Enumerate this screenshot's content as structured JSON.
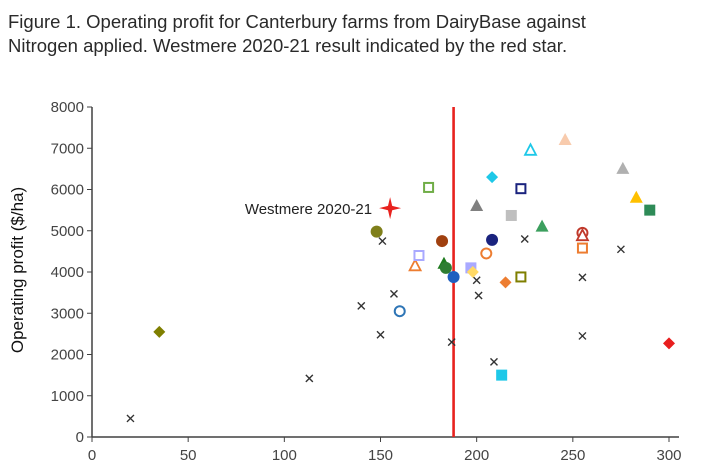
{
  "title_lines": [
    "Figure 1. Operating profit for Canterbury farms from DairyBase against",
    "Nitrogen applied. Westmere 2020-21 result indicated by the red star."
  ],
  "chart_data": {
    "type": "scatter",
    "title": "Figure 1. Operating profit for Canterbury farms from DairyBase against Nitrogen applied. Westmere 2020-21 result indicated by the red star.",
    "xlabel": "",
    "ylabel": "Operating profit ($/ha)",
    "xlim": [
      0,
      300
    ],
    "ylim": [
      0,
      8000
    ],
    "x_ticks": [
      0,
      50,
      100,
      150,
      200,
      250,
      300
    ],
    "y_ticks": [
      0,
      1000,
      2000,
      3000,
      4000,
      5000,
      6000,
      7000,
      8000
    ],
    "grid": false,
    "reference_line": {
      "x": 188,
      "color": "#e8221e"
    },
    "annotation": {
      "text": "Westmere 2020-21",
      "x": 155,
      "y": 5550
    },
    "points": [
      {
        "x": 20,
        "y": 450,
        "marker": "cross",
        "color": "#333333"
      },
      {
        "x": 35,
        "y": 2550,
        "marker": "diamond",
        "color": "#7f7f00"
      },
      {
        "x": 113,
        "y": 1420,
        "marker": "cross",
        "color": "#333333"
      },
      {
        "x": 140,
        "y": 3180,
        "marker": "cross",
        "color": "#333333"
      },
      {
        "x": 148,
        "y": 4980,
        "marker": "circle",
        "color": "#7f7f1a"
      },
      {
        "x": 150,
        "y": 2480,
        "marker": "cross",
        "color": "#333333"
      },
      {
        "x": 151,
        "y": 4750,
        "marker": "cross",
        "color": "#333333"
      },
      {
        "x": 155,
        "y": 5550,
        "marker": "star",
        "color": "#e8221e"
      },
      {
        "x": 157,
        "y": 3470,
        "marker": "cross",
        "color": "#333333"
      },
      {
        "x": 160,
        "y": 3050,
        "marker": "circle-open",
        "color": "#2e75b6"
      },
      {
        "x": 168,
        "y": 4150,
        "marker": "triangle-open",
        "color": "#ed7d31"
      },
      {
        "x": 170,
        "y": 4400,
        "marker": "square-open",
        "color": "#a9a9ff"
      },
      {
        "x": 175,
        "y": 6050,
        "marker": "square-open",
        "color": "#70ad47"
      },
      {
        "x": 182,
        "y": 4750,
        "marker": "circle",
        "color": "#a0400f"
      },
      {
        "x": 183,
        "y": 4200,
        "marker": "triangle",
        "color": "#1e7b1e"
      },
      {
        "x": 184,
        "y": 4100,
        "marker": "circle",
        "color": "#2e7d32"
      },
      {
        "x": 187,
        "y": 2300,
        "marker": "cross",
        "color": "#333333"
      },
      {
        "x": 188,
        "y": 3880,
        "marker": "circle",
        "color": "#1f5fbf"
      },
      {
        "x": 197,
        "y": 4100,
        "marker": "square",
        "color": "#a9a9ff"
      },
      {
        "x": 200,
        "y": 5600,
        "marker": "triangle",
        "color": "#808080"
      },
      {
        "x": 200,
        "y": 3800,
        "marker": "cross",
        "color": "#333333"
      },
      {
        "x": 198,
        "y": 4000,
        "marker": "diamond",
        "color": "#ffd966"
      },
      {
        "x": 201,
        "y": 3430,
        "marker": "cross",
        "color": "#333333"
      },
      {
        "x": 205,
        "y": 4450,
        "marker": "circle-open",
        "color": "#ed7d31"
      },
      {
        "x": 208,
        "y": 6300,
        "marker": "diamond",
        "color": "#1ec8e8"
      },
      {
        "x": 208,
        "y": 4780,
        "marker": "circle",
        "color": "#1a237e"
      },
      {
        "x": 209,
        "y": 1820,
        "marker": "cross",
        "color": "#333333"
      },
      {
        "x": 213,
        "y": 1500,
        "marker": "square",
        "color": "#1ec8e8"
      },
      {
        "x": 215,
        "y": 3750,
        "marker": "diamond",
        "color": "#ed7d31"
      },
      {
        "x": 218,
        "y": 5370,
        "marker": "square",
        "color": "#bfbfbf"
      },
      {
        "x": 223,
        "y": 6020,
        "marker": "square-open",
        "color": "#1a237e"
      },
      {
        "x": 223,
        "y": 3880,
        "marker": "square-open",
        "color": "#7f7f00"
      },
      {
        "x": 225,
        "y": 4800,
        "marker": "cross",
        "color": "#333333"
      },
      {
        "x": 228,
        "y": 6950,
        "marker": "triangle-open",
        "color": "#1ec8e8"
      },
      {
        "x": 234,
        "y": 5100,
        "marker": "triangle",
        "color": "#3c9f5e"
      },
      {
        "x": 246,
        "y": 7200,
        "marker": "triangle",
        "color": "#f8cbad"
      },
      {
        "x": 255,
        "y": 4950,
        "marker": "circle-open",
        "color": "#c0392b"
      },
      {
        "x": 255,
        "y": 4880,
        "marker": "triangle-open",
        "color": "#c0392b"
      },
      {
        "x": 255,
        "y": 4580,
        "marker": "square-open",
        "color": "#ed7d31"
      },
      {
        "x": 255,
        "y": 3870,
        "marker": "cross",
        "color": "#333333"
      },
      {
        "x": 255,
        "y": 2450,
        "marker": "cross",
        "color": "#333333"
      },
      {
        "x": 275,
        "y": 4550,
        "marker": "cross",
        "color": "#333333"
      },
      {
        "x": 276,
        "y": 6500,
        "marker": "triangle",
        "color": "#b0b0b0"
      },
      {
        "x": 283,
        "y": 5800,
        "marker": "triangle",
        "color": "#ffc000"
      },
      {
        "x": 290,
        "y": 5500,
        "marker": "square",
        "color": "#2e8b57"
      },
      {
        "x": 300,
        "y": 2270,
        "marker": "diamond",
        "color": "#e81e1e"
      }
    ]
  }
}
